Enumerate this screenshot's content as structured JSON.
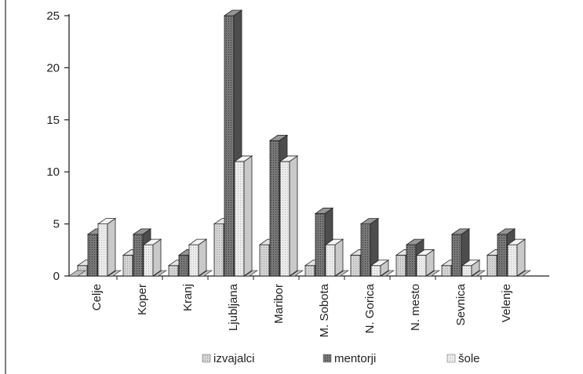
{
  "chart_data": {
    "type": "bar",
    "three_d": true,
    "categories": [
      "Celje",
      "Koper",
      "Kranj",
      "Ljubljana",
      "Maribor",
      "M. Sobota",
      "N. Gorica",
      "N. mesto",
      "Sevnica",
      "Velenje"
    ],
    "series": [
      {
        "name": "izvajalci",
        "color": "#c8c8c8",
        "values": [
          1,
          2,
          1,
          5,
          3,
          1,
          2,
          2,
          1,
          2
        ]
      },
      {
        "name": "mentorji",
        "color": "#7a7a7a",
        "values": [
          4,
          4,
          2,
          25,
          13,
          6,
          5,
          3,
          4,
          4
        ]
      },
      {
        "name": "šole",
        "color": "#e6e6e6",
        "values": [
          5,
          3,
          3,
          11,
          11,
          3,
          1,
          2,
          1,
          3
        ]
      }
    ],
    "yticks": [
      "0",
      "5",
      "10",
      "15",
      "20",
      "25"
    ],
    "ylim": [
      0,
      25
    ],
    "grid": false,
    "legend_position": "bottom"
  }
}
